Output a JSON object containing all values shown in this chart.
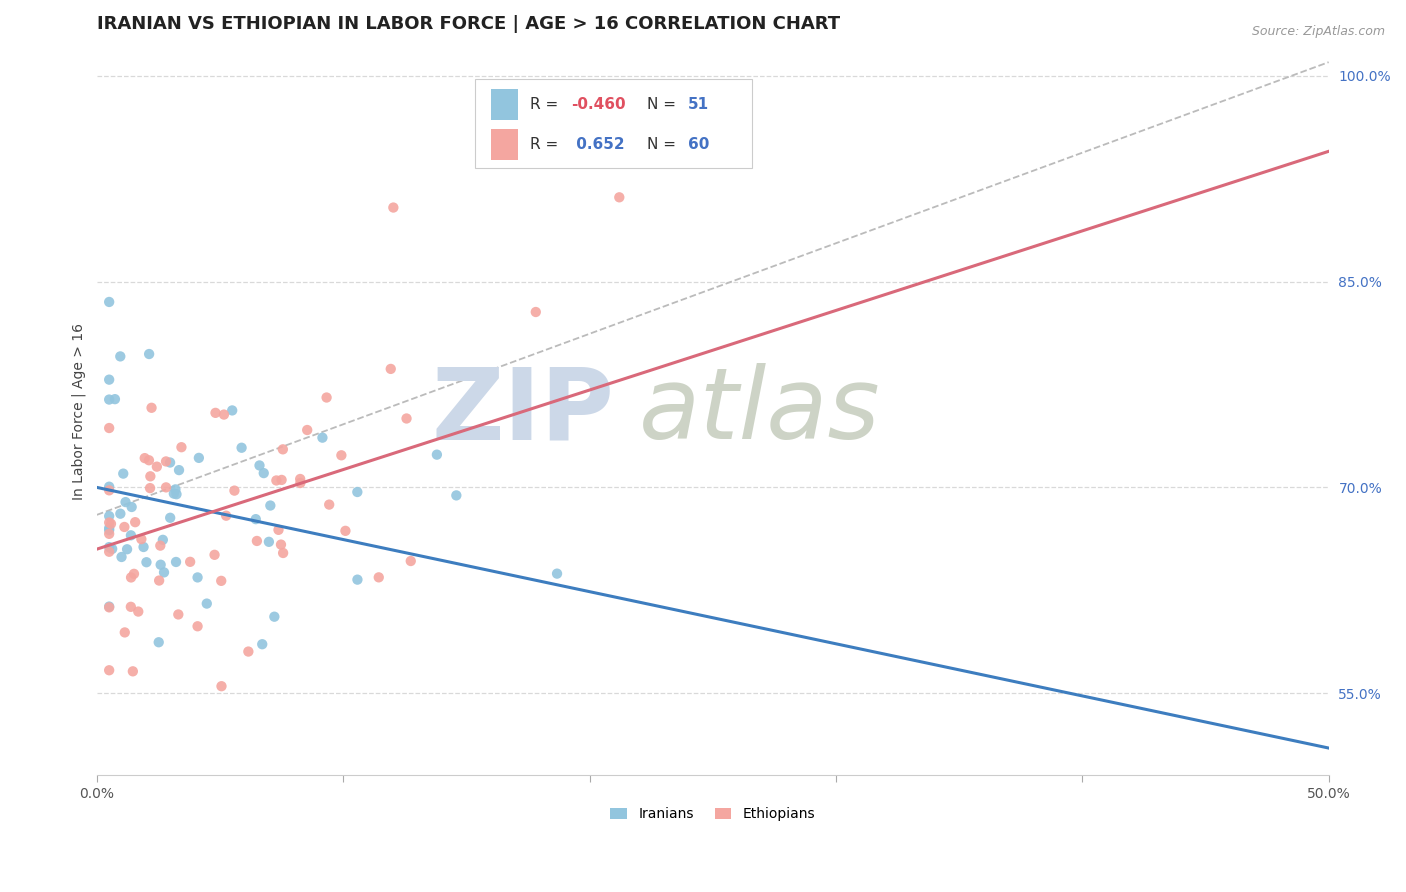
{
  "title": "IRANIAN VS ETHIOPIAN IN LABOR FORCE | AGE > 16 CORRELATION CHART",
  "source": "Source: ZipAtlas.com",
  "ylabel": "In Labor Force | Age > 16",
  "xlim": [
    0.0,
    0.5
  ],
  "ylim": [
    0.49,
    1.02
  ],
  "xtick_positions": [
    0.0,
    0.1,
    0.2,
    0.3,
    0.4,
    0.5
  ],
  "xticklabels_shown": {
    "0.0": "0.0%",
    "0.5": "50.0%"
  },
  "ytick_positions": [
    0.55,
    0.7,
    0.85,
    1.0
  ],
  "yticklabels": [
    "55.0%",
    "70.0%",
    "85.0%",
    "100.0%"
  ],
  "iranian_scatter_color": "#92c5de",
  "ethiopian_scatter_color": "#f4a6a0",
  "iranian_line_color": "#3d7dbf",
  "ethiopian_line_color": "#d9697a",
  "R_iranian": -0.46,
  "N_iranian": 51,
  "R_ethiopian": 0.652,
  "N_ethiopian": 60,
  "iran_line_x0": 0.0,
  "iran_line_y0": 0.7,
  "iran_line_x1": 0.5,
  "iran_line_y1": 0.51,
  "ethi_line_x0": 0.0,
  "ethi_line_y0": 0.655,
  "ethi_line_x1": 0.5,
  "ethi_line_y1": 0.945,
  "dash_line_x0": 0.0,
  "dash_line_y0": 0.68,
  "dash_line_x1": 0.5,
  "dash_line_y1": 1.01,
  "background_color": "#ffffff",
  "grid_color": "#d9d9d9",
  "title_fontsize": 13,
  "tick_fontsize": 10,
  "watermark_zip_color": "#ccd8e8",
  "watermark_atlas_color": "#c8cfc0"
}
